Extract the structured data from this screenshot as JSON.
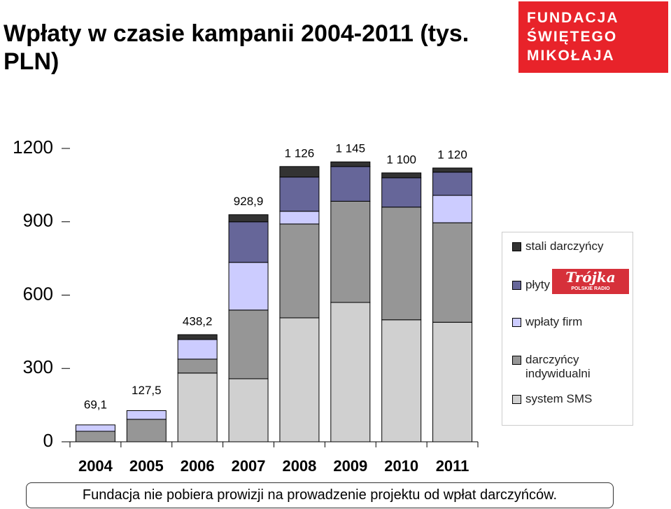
{
  "chart_data": {
    "type": "stacked_bar",
    "title": "Wpłaty w czasie kampanii 2004-2011 (tys. PLN)",
    "categories": [
      "2004",
      "2005",
      "2006",
      "2007",
      "2008",
      "2009",
      "2010",
      "2011"
    ],
    "series": [
      {
        "name": "system SMS",
        "color": "#d0d0d0",
        "values": [
          0,
          0,
          281.2,
          257.9,
          507,
          570,
          499,
          489
        ]
      },
      {
        "name": "darczyńcy indywidualni",
        "color": "#969696",
        "values": [
          43,
          92,
          57,
          281,
          384,
          414,
          461,
          407
        ]
      },
      {
        "name": "wpłaty firm",
        "color": "#ccccff",
        "values": [
          26.1,
          35.5,
          80,
          195,
          52,
          0,
          0,
          112
        ]
      },
      {
        "name": "płyty",
        "color": "#666699",
        "values": [
          0,
          0,
          0,
          166,
          140,
          142,
          120,
          95
        ]
      },
      {
        "name": "stali darczyńcy",
        "color": "#333333",
        "values": [
          0,
          0,
          20,
          29,
          43,
          19,
          20,
          17
        ]
      }
    ],
    "totals": [
      69.1,
      127.5,
      438.2,
      928.9,
      1126,
      1145,
      1100,
      1120
    ],
    "total_labels": [
      "69,1",
      "127,5",
      "438,2",
      "928,9",
      "1 126",
      "1 145",
      "1 100",
      "1 120"
    ],
    "ylim": [
      0,
      1200
    ],
    "yticks": [
      0,
      300,
      600,
      900,
      1200
    ],
    "legend": "right",
    "logo": "FUNDACJA ŚWIĘTEGO MIKOŁAJA",
    "trojka_logo": "Trójka",
    "trojka_sub": "POLSKIE RADIO",
    "footnote": "Fundacja nie pobiera prowizji na prowadzenie projektu od wpłat darczyńców."
  }
}
